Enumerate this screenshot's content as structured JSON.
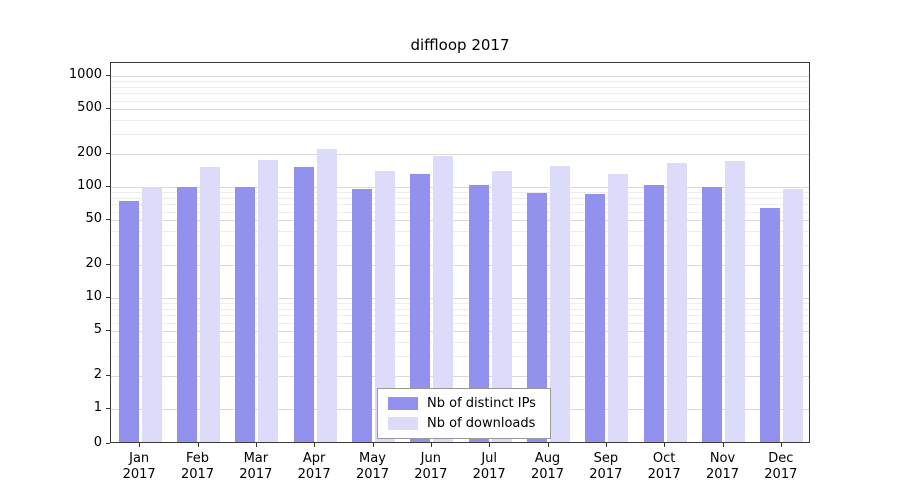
{
  "title": "diffloop 2017",
  "chart_data": {
    "type": "bar",
    "scale": "symlog",
    "title": "diffloop 2017",
    "grid": true,
    "legend_position": "lower center",
    "ylim": [
      0,
      1000
    ],
    "yticks": [
      0,
      1,
      2,
      5,
      10,
      20,
      50,
      100,
      200,
      500,
      1000
    ],
    "categories": [
      "Jan 2017",
      "Feb 2017",
      "Mar 2017",
      "Apr 2017",
      "May 2017",
      "Jun 2017",
      "Jul 2017",
      "Aug 2017",
      "Sep 2017",
      "Oct 2017",
      "Nov 2017",
      "Dec 2017"
    ],
    "series": [
      {
        "name": "Nb of distinct IPs",
        "color": "#9292ee",
        "values": [
          75,
          100,
          100,
          150,
          95,
          130,
          105,
          88,
          87,
          105,
          100,
          65
        ]
      },
      {
        "name": "Nb of downloads",
        "color": "#dcdcfa",
        "values": [
          100,
          150,
          175,
          220,
          140,
          190,
          140,
          155,
          130,
          165,
          170,
          95
        ]
      }
    ]
  }
}
